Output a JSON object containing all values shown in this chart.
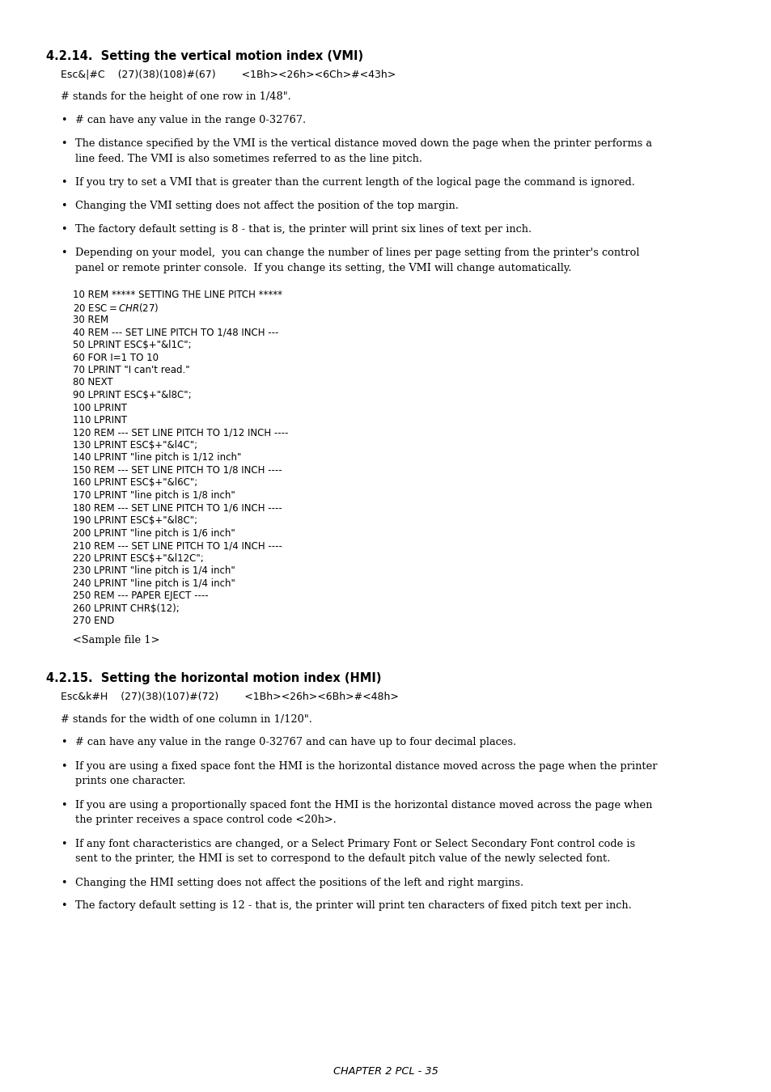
{
  "bg_color": "#ffffff",
  "text_color": "#000000",
  "title1": "4.2.14.  Setting the vertical motion index (VMI)",
  "cmd1_mono": "Esc&|#C    (27)(38)(108)#(67)        <1Bh><26h><6Ch>#<43h>",
  "desc1": "# stands for the height of one row in 1/48\".",
  "bullets1": [
    [
      "# can have any value in the range 0-32767.",
      1
    ],
    [
      "The distance specified by the VMI is the vertical distance moved down the page when the printer performs a",
      2
    ],
    [
      "If you try to set a VMI that is greater than the current length of the logical page the command is ignored.",
      1
    ],
    [
      "Changing the VMI setting does not affect the position of the top margin.",
      1
    ],
    [
      "The factory default setting is 8 - that is, the printer will print six lines of text per inch.",
      1
    ],
    [
      "Depending on your model,  you can change the number of lines per page setting from the printer's control",
      2
    ]
  ],
  "bullets1_line2": [
    "",
    "line feed. The VMI is also sometimes referred to as the line pitch.",
    "",
    "",
    "",
    "panel or remote printer console.  If you change its setting, the VMI will change automatically."
  ],
  "code_block": [
    "10 REM ***** SETTING THE LINE PITCH *****",
    "20 ESC$=CHR$(27)",
    "30 REM",
    "40 REM --- SET LINE PITCH TO 1/48 INCH ---",
    "50 LPRINT ESC$+\"&l1C\";",
    "60 FOR I=1 TO 10",
    "70 LPRINT \"I can't read.\"",
    "80 NEXT",
    "90 LPRINT ESC$+\"&l8C\";",
    "100 LPRINT",
    "110 LPRINT",
    "120 REM --- SET LINE PITCH TO 1/12 INCH ----",
    "130 LPRINT ESC$+\"&l4C\";",
    "140 LPRINT \"line pitch is 1/12 inch\"",
    "150 REM --- SET LINE PITCH TO 1/8 INCH ----",
    "160 LPRINT ESC$+\"&l6C\";",
    "170 LPRINT \"line pitch is 1/8 inch\"",
    "180 REM --- SET LINE PITCH TO 1/6 INCH ----",
    "190 LPRINT ESC$+\"&l8C\";",
    "200 LPRINT \"line pitch is 1/6 inch\"",
    "210 REM --- SET LINE PITCH TO 1/4 INCH ----",
    "220 LPRINT ESC$+\"&l12C\";",
    "230 LPRINT \"line pitch is 1/4 inch\"",
    "240 LPRINT \"line pitch is 1/4 inch\"",
    "250 REM --- PAPER EJECT ----",
    "260 LPRINT CHR$(12);",
    "270 END"
  ],
  "sample_label": "<Sample file 1>",
  "title2": "4.2.15.  Setting the horizontal motion index (HMI)",
  "cmd2_mono": "Esc&k#H    (27)(38)(107)#(72)        <1Bh><26h><6Bh>#<48h>",
  "desc2": "# stands for the width of one column in 1/120\".",
  "bullets2": [
    [
      "# can have any value in the range 0-32767 and can have up to four decimal places.",
      1
    ],
    [
      "If you are using a fixed space font the HMI is the horizontal distance moved across the page when the printer",
      2
    ],
    [
      "If you are using a proportionally spaced font the HMI is the horizontal distance moved across the page when",
      2
    ],
    [
      "If any font characteristics are changed, or a Select Primary Font or Select Secondary Font control code is",
      2
    ],
    [
      "Changing the HMI setting does not affect the positions of the left and right margins.",
      1
    ],
    [
      "The factory default setting is 12 - that is, the printer will print ten characters of fixed pitch text per inch.",
      1
    ]
  ],
  "bullets2_line2": [
    "",
    "prints one character.",
    "the printer receives a space control code <20h>.",
    "sent to the printer, the HMI is set to correspond to the default pitch value of the newly selected font.",
    "",
    ""
  ],
  "footer": "CHAPTER 2 PCL - 35"
}
